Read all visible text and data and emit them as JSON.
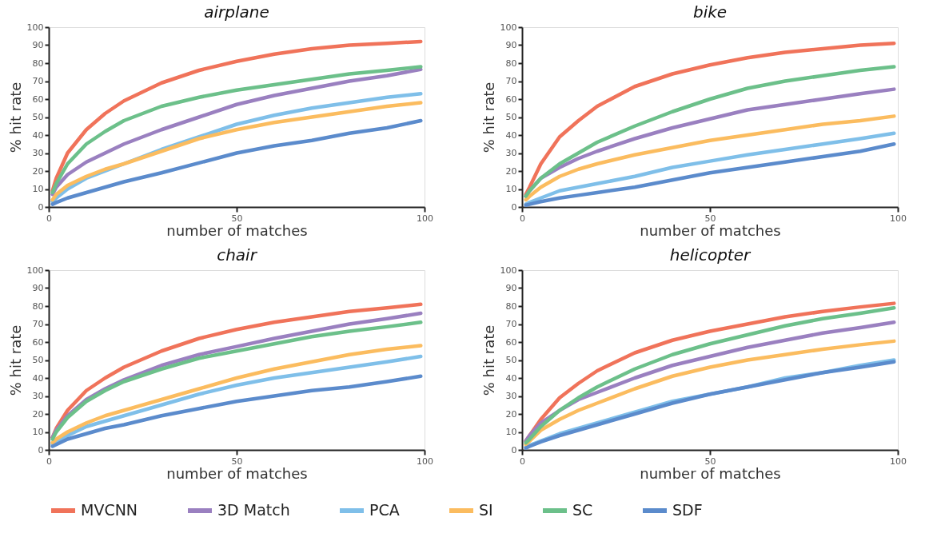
{
  "chart_data": [
    {
      "type": "line",
      "title": "airplane",
      "xlabel": "number of matches",
      "ylabel": "% hit rate",
      "xlim": [
        0,
        100
      ],
      "xticks": [
        0,
        50,
        100
      ],
      "ylim": [
        0,
        100
      ],
      "yticks": [
        0,
        10,
        20,
        30,
        40,
        50,
        60,
        70,
        80,
        90,
        100
      ],
      "grid": false,
      "legend": "bottom",
      "marker": "none",
      "line_style": "solid",
      "x": [
        1,
        2,
        5,
        10,
        15,
        20,
        30,
        40,
        50,
        60,
        70,
        80,
        90,
        99
      ],
      "series": [
        {
          "name": "MVCNN",
          "color": "#f0735a",
          "values": [
            9,
            16,
            30,
            43,
            52,
            59,
            69,
            76,
            81,
            85,
            88,
            90,
            91,
            92
          ]
        },
        {
          "name": "3D Match",
          "color": "#9a80c0",
          "values": [
            7,
            11,
            18,
            25,
            30,
            35,
            43,
            50,
            57,
            62,
            66,
            70,
            73,
            76.5
          ]
        },
        {
          "name": "PCA",
          "color": "#7fbfe9",
          "values": [
            3,
            5,
            10,
            16,
            20,
            24,
            32,
            39,
            46,
            51,
            55,
            58,
            61,
            63
          ]
        },
        {
          "name": "SI",
          "color": "#fbbc5f",
          "values": [
            4,
            7,
            12,
            17,
            21,
            24,
            31,
            38,
            43,
            47,
            50,
            53,
            56,
            58
          ]
        },
        {
          "name": "SC",
          "color": "#6cc08a",
          "values": [
            8,
            13,
            24,
            35,
            42,
            48,
            56,
            61,
            65,
            68,
            71,
            74,
            76,
            78
          ]
        },
        {
          "name": "SDF",
          "color": "#5b8bcc",
          "values": [
            1.5,
            2.5,
            5,
            8,
            11,
            14,
            19,
            24.5,
            30,
            34,
            37,
            41,
            44,
            48
          ]
        }
      ]
    },
    {
      "type": "line",
      "title": "bike",
      "xlabel": "number of matches",
      "ylabel": "% hit rate",
      "xlim": [
        0,
        100
      ],
      "xticks": [
        0,
        50,
        100
      ],
      "ylim": [
        0,
        100
      ],
      "yticks": [
        0,
        10,
        20,
        30,
        40,
        50,
        60,
        70,
        80,
        90,
        100
      ],
      "grid": false,
      "legend": "bottom",
      "marker": "none",
      "line_style": "solid",
      "x": [
        1,
        2,
        5,
        10,
        15,
        20,
        30,
        40,
        50,
        60,
        70,
        80,
        90,
        99
      ],
      "series": [
        {
          "name": "MVCNN",
          "color": "#f0735a",
          "values": [
            7,
            11,
            24,
            39,
            48,
            56,
            67,
            74,
            79,
            83,
            86,
            88,
            90,
            91
          ]
        },
        {
          "name": "3D Match",
          "color": "#9a80c0",
          "values": [
            6,
            9,
            16,
            22,
            27,
            31,
            38,
            44,
            49,
            54,
            57,
            60,
            63,
            65.5
          ]
        },
        {
          "name": "PCA",
          "color": "#7fbfe9",
          "values": [
            1.5,
            2.5,
            5,
            9,
            11,
            13,
            17,
            22,
            25.5,
            29,
            32,
            35,
            38,
            41
          ]
        },
        {
          "name": "SI",
          "color": "#fbbc5f",
          "values": [
            4,
            6,
            11,
            17,
            21,
            24,
            29,
            33,
            37,
            40,
            43,
            46,
            48,
            50.5
          ]
        },
        {
          "name": "SC",
          "color": "#6cc08a",
          "values": [
            6,
            9,
            16,
            24,
            30,
            36,
            45,
            53,
            60,
            66,
            70,
            73,
            76,
            78
          ]
        },
        {
          "name": "SDF",
          "color": "#5b8bcc",
          "values": [
            1,
            1.5,
            3,
            5,
            6.5,
            8,
            11,
            15,
            19,
            22,
            25,
            28,
            31,
            35
          ]
        }
      ]
    },
    {
      "type": "line",
      "title": "chair",
      "xlabel": "number of matches",
      "ylabel": "% hit rate",
      "xlim": [
        0,
        100
      ],
      "xticks": [
        0,
        50,
        100
      ],
      "ylim": [
        0,
        100
      ],
      "yticks": [
        0,
        10,
        20,
        30,
        40,
        50,
        60,
        70,
        80,
        90,
        100
      ],
      "grid": false,
      "legend": "bottom",
      "marker": "none",
      "line_style": "solid",
      "x": [
        1,
        2,
        5,
        10,
        15,
        20,
        30,
        40,
        50,
        60,
        70,
        80,
        90,
        99
      ],
      "series": [
        {
          "name": "MVCNN",
          "color": "#f0735a",
          "values": [
            7,
            12,
            22,
            33,
            40,
            46,
            55,
            62,
            67,
            71,
            74,
            77,
            79,
            81
          ]
        },
        {
          "name": "3D Match",
          "color": "#9a80c0",
          "values": [
            7,
            11,
            19,
            28,
            34,
            39,
            47,
            53,
            57.5,
            62,
            66,
            70,
            73,
            76
          ]
        },
        {
          "name": "PCA",
          "color": "#7fbfe9",
          "values": [
            3,
            4,
            8,
            13,
            16,
            19,
            25,
            31,
            36,
            40,
            43,
            46,
            49,
            52
          ]
        },
        {
          "name": "SI",
          "color": "#fbbc5f",
          "values": [
            4,
            6,
            10,
            15,
            19,
            22,
            28,
            34,
            40,
            45,
            49,
            53,
            56,
            58
          ]
        },
        {
          "name": "SC",
          "color": "#6cc08a",
          "values": [
            6,
            10,
            18,
            27,
            33,
            38,
            45,
            51,
            55,
            59,
            63,
            66,
            68.5,
            71
          ]
        },
        {
          "name": "SDF",
          "color": "#5b8bcc",
          "values": [
            2,
            3,
            6,
            9,
            12,
            14,
            19,
            23,
            27,
            30,
            33,
            35,
            38,
            41
          ]
        }
      ]
    },
    {
      "type": "line",
      "title": "helicopter",
      "xlabel": "number of matches",
      "ylabel": "% hit rate",
      "xlim": [
        0,
        100
      ],
      "xticks": [
        0,
        50,
        100
      ],
      "ylim": [
        0,
        100
      ],
      "yticks": [
        0,
        10,
        20,
        30,
        40,
        50,
        60,
        70,
        80,
        90,
        100
      ],
      "grid": false,
      "legend": "bottom",
      "marker": "none",
      "line_style": "solid",
      "x": [
        1,
        2,
        5,
        10,
        15,
        20,
        30,
        40,
        50,
        60,
        70,
        80,
        90,
        99
      ],
      "series": [
        {
          "name": "MVCNN",
          "color": "#f0735a",
          "values": [
            5,
            8,
            17,
            29,
            37,
            44,
            54,
            61,
            66,
            70,
            74,
            77,
            79.5,
            81.5
          ]
        },
        {
          "name": "3D Match",
          "color": "#9a80c0",
          "values": [
            5,
            8,
            15,
            22,
            28,
            32,
            40,
            47,
            52,
            57,
            61,
            65,
            68,
            71
          ]
        },
        {
          "name": "PCA",
          "color": "#7fbfe9",
          "values": [
            1.5,
            2.5,
            5,
            9,
            12,
            15,
            21,
            27,
            31,
            35,
            40,
            43,
            47,
            50
          ]
        },
        {
          "name": "SI",
          "color": "#fbbc5f",
          "values": [
            3,
            5,
            11,
            17,
            22,
            26,
            34,
            41,
            46,
            50,
            53,
            56,
            58.5,
            60.5
          ]
        },
        {
          "name": "SC",
          "color": "#6cc08a",
          "values": [
            4,
            6,
            13,
            22,
            29,
            35,
            45,
            53,
            59,
            64,
            69,
            73,
            76,
            79
          ]
        },
        {
          "name": "SDF",
          "color": "#5b8bcc",
          "values": [
            1,
            2,
            4.5,
            8,
            11,
            14,
            20,
            26,
            31,
            35,
            39,
            43,
            46,
            49
          ]
        }
      ]
    }
  ]
}
